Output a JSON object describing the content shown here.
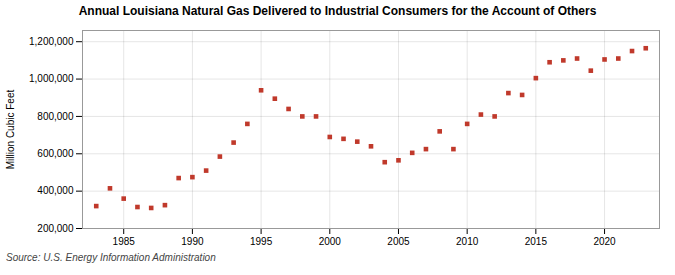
{
  "chart_data": {
    "type": "scatter",
    "title": "Annual Louisiana Natural Gas Delivered to Industrial Consumers for the Account of Others",
    "ylabel": "Million Cubic Feet",
    "source": "Source: U.S. Energy Information Administration",
    "x": [
      1983,
      1984,
      1985,
      1986,
      1987,
      1988,
      1989,
      1990,
      1991,
      1992,
      1993,
      1994,
      1995,
      1996,
      1997,
      1998,
      1999,
      2000,
      2001,
      2002,
      2003,
      2004,
      2005,
      2006,
      2007,
      2008,
      2009,
      2010,
      2011,
      2012,
      2013,
      2014,
      2015,
      2016,
      2017,
      2018,
      2019,
      2020,
      2021,
      2022,
      2023
    ],
    "values": [
      320000,
      415000,
      360000,
      315000,
      310000,
      325000,
      470000,
      475000,
      510000,
      585000,
      660000,
      760000,
      940000,
      895000,
      840000,
      800000,
      800000,
      690000,
      680000,
      665000,
      640000,
      555000,
      565000,
      605000,
      625000,
      720000,
      625000,
      760000,
      810000,
      800000,
      925000,
      915000,
      1005000,
      1090000,
      1100000,
      1110000,
      1045000,
      1105000,
      1110000,
      1150000,
      1165000
    ],
    "color": "#c0392b",
    "marker": "square",
    "xlim": [
      1982,
      2024
    ],
    "ylim": [
      200000,
      1260000
    ],
    "xticks": [
      1985,
      1990,
      1995,
      2000,
      2005,
      2010,
      2015,
      2020
    ],
    "yticks": [
      {
        "value": 200000,
        "label": "200,000"
      },
      {
        "value": 400000,
        "label": "400,000"
      },
      {
        "value": 600000,
        "label": "600,000"
      },
      {
        "value": 800000,
        "label": "800,000"
      },
      {
        "value": 1000000,
        "label": "1,000,000"
      },
      {
        "value": 1200000,
        "label": "1,200,000"
      }
    ],
    "grid": true
  }
}
